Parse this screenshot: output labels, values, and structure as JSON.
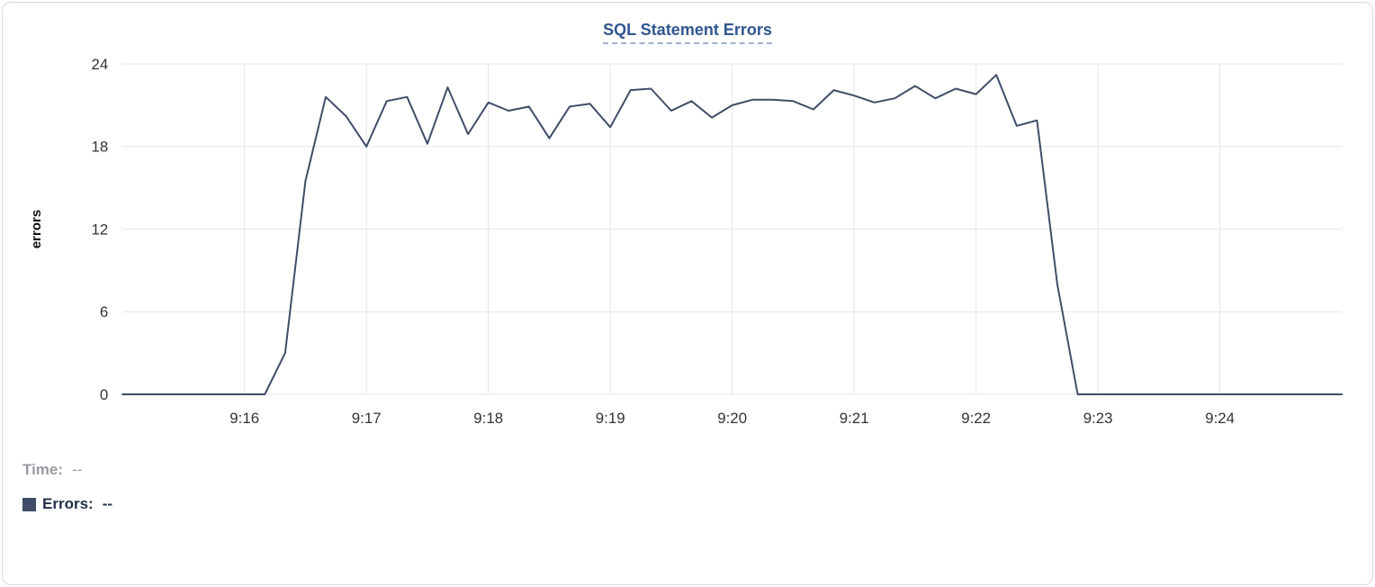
{
  "chart_data": {
    "type": "line",
    "title": "SQL Statement Errors",
    "ylabel": "errors",
    "x_range": [
      "9:15:00",
      "9:25:00"
    ],
    "x_ticks": [
      "9:16",
      "9:17",
      "9:18",
      "9:19",
      "9:20",
      "9:21",
      "9:22",
      "9:23",
      "9:24"
    ],
    "y_ticks": [
      0,
      6,
      12,
      18,
      24
    ],
    "ylim": [
      0,
      24
    ],
    "grid": true,
    "legend_position": "bottom-left",
    "series": [
      {
        "name": "Errors",
        "color": "#3f4d67",
        "points": [
          [
            "9:15:00",
            0
          ],
          [
            "9:15:10",
            0
          ],
          [
            "9:15:20",
            0
          ],
          [
            "9:15:30",
            0
          ],
          [
            "9:15:40",
            0
          ],
          [
            "9:15:50",
            0
          ],
          [
            "9:16:00",
            0
          ],
          [
            "9:16:10",
            0
          ],
          [
            "9:16:20",
            3
          ],
          [
            "9:16:30",
            15.5
          ],
          [
            "9:16:40",
            21.6
          ],
          [
            "9:16:50",
            20.2
          ],
          [
            "9:17:00",
            18
          ],
          [
            "9:17:10",
            21.3
          ],
          [
            "9:17:20",
            21.6
          ],
          [
            "9:17:30",
            18.2
          ],
          [
            "9:17:40",
            22.3
          ],
          [
            "9:17:50",
            18.9
          ],
          [
            "9:18:00",
            21.2
          ],
          [
            "9:18:10",
            20.6
          ],
          [
            "9:18:20",
            20.9
          ],
          [
            "9:18:30",
            18.6
          ],
          [
            "9:18:40",
            20.9
          ],
          [
            "9:18:50",
            21.1
          ],
          [
            "9:19:00",
            19.4
          ],
          [
            "9:19:10",
            22.1
          ],
          [
            "9:19:20",
            22.2
          ],
          [
            "9:19:30",
            20.6
          ],
          [
            "9:19:40",
            21.3
          ],
          [
            "9:19:50",
            20.1
          ],
          [
            "9:20:00",
            21.0
          ],
          [
            "9:20:10",
            21.4
          ],
          [
            "9:20:20",
            21.4
          ],
          [
            "9:20:30",
            21.3
          ],
          [
            "9:20:40",
            20.7
          ],
          [
            "9:20:50",
            22.1
          ],
          [
            "9:21:00",
            21.7
          ],
          [
            "9:21:10",
            21.2
          ],
          [
            "9:21:20",
            21.5
          ],
          [
            "9:21:30",
            22.4
          ],
          [
            "9:21:40",
            21.5
          ],
          [
            "9:21:50",
            22.2
          ],
          [
            "9:22:00",
            21.8
          ],
          [
            "9:22:10",
            23.2
          ],
          [
            "9:22:20",
            19.5
          ],
          [
            "9:22:30",
            19.9
          ],
          [
            "9:22:40",
            8
          ],
          [
            "9:22:50",
            0
          ],
          [
            "9:23:00",
            0
          ],
          [
            "9:23:10",
            0
          ],
          [
            "9:23:20",
            0
          ],
          [
            "9:23:30",
            0
          ],
          [
            "9:23:40",
            0
          ],
          [
            "9:23:50",
            0
          ],
          [
            "9:24:00",
            0
          ],
          [
            "9:24:10",
            0
          ],
          [
            "9:24:20",
            0
          ],
          [
            "9:24:30",
            0
          ],
          [
            "9:24:40",
            0
          ],
          [
            "9:24:50",
            0
          ],
          [
            "9:25:00",
            0
          ]
        ]
      }
    ]
  },
  "readout": {
    "time_label": "Time:",
    "time_value": "--",
    "errors_label": "Errors:",
    "errors_value": "--",
    "swatch_color": "#3f4d67"
  },
  "colors": {
    "line": "#3f4d67",
    "title": "#2f5690",
    "title_underline": "#9fb0cc",
    "grid": "#e6e6e6",
    "axis_text": "#333333",
    "ylabel_text": "#111111",
    "muted_text": "#9a9aa0",
    "card_border": "#d9d9d9"
  }
}
